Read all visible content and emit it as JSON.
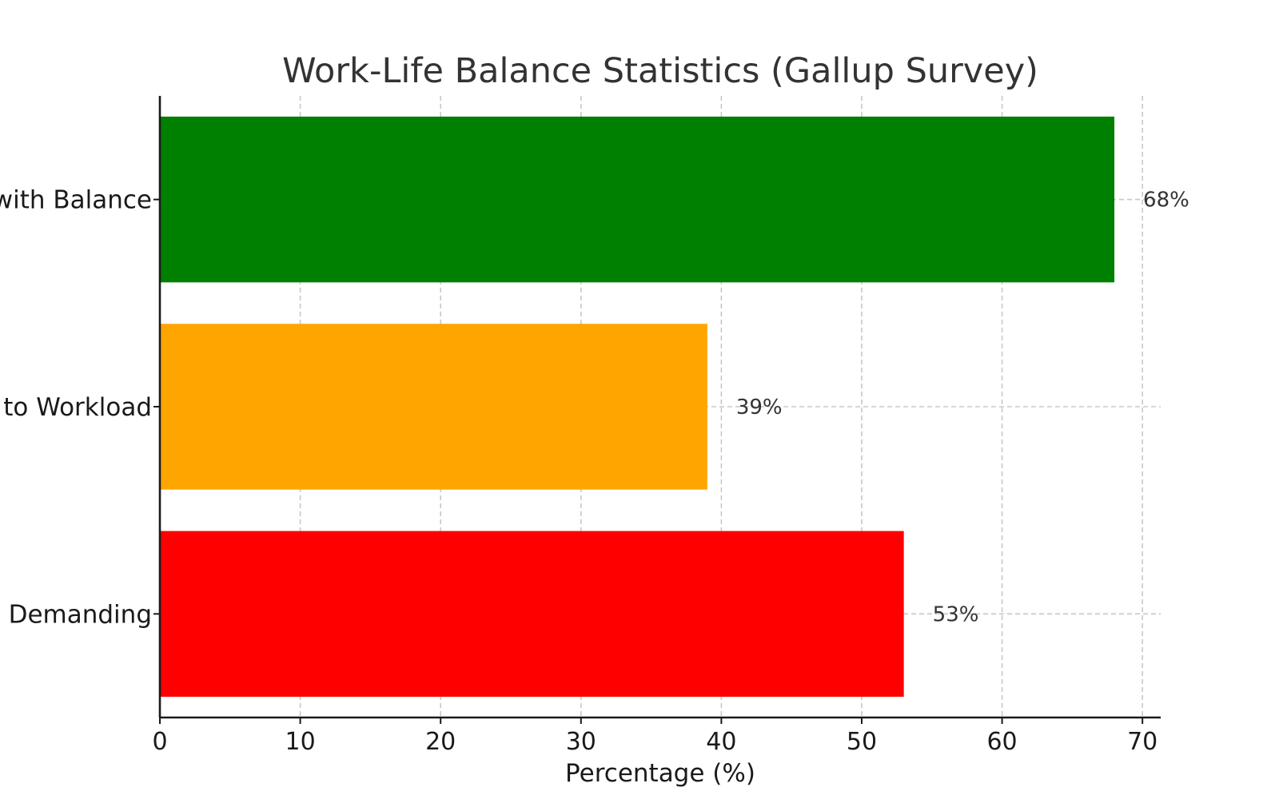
{
  "chart_data": {
    "type": "bar",
    "orientation": "horizontal",
    "title": "Work-Life Balance Statistics (Gallup Survey)",
    "xlabel": "Percentage (%)",
    "ylabel": "",
    "xlim": [
      0,
      71.3
    ],
    "xticks": [
      0,
      10,
      20,
      30,
      40,
      50,
      60,
      70
    ],
    "grid": true,
    "categories": [
      "Satisfied with Balance",
      "Stress due to Workload",
      "Demanding"
    ],
    "visible_category_labels": [
      "with Balance",
      "to Workload",
      "Demanding"
    ],
    "values": [
      68,
      39,
      53
    ],
    "value_labels": [
      "68%",
      "39%",
      "53%"
    ],
    "colors": [
      "#008000",
      "#FFA500",
      "#FF0000"
    ]
  }
}
